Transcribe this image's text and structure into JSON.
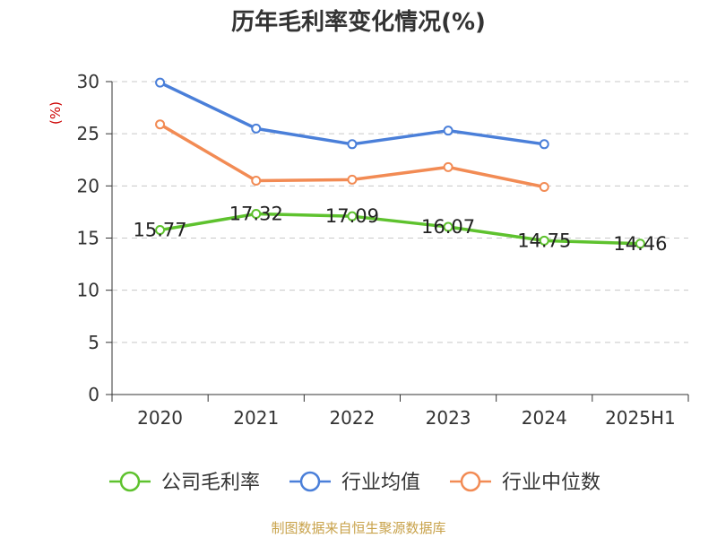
{
  "chart_data": {
    "type": "line",
    "title": "历年毛利率变化情况(%)",
    "ylabel": "(%)",
    "xlabel": "",
    "categories": [
      "2020",
      "2021",
      "2022",
      "2023",
      "2024",
      "2025H1"
    ],
    "ylim": [
      0,
      30
    ],
    "yticks": [
      0,
      5,
      10,
      15,
      20,
      25,
      30
    ],
    "grid": true,
    "legend_position": "bottom",
    "series": [
      {
        "name": "公司毛利率",
        "color": "#5ec22e",
        "values": [
          15.77,
          17.32,
          17.09,
          16.07,
          14.75,
          14.46
        ],
        "data_labels": [
          "15.77",
          "17.32",
          "17.09",
          "16.07",
          "14.75",
          "14.46"
        ]
      },
      {
        "name": "行业均值",
        "color": "#4a7fd9",
        "values": [
          29.9,
          25.5,
          24.0,
          25.3,
          24.0,
          null
        ]
      },
      {
        "name": "行业中位数",
        "color": "#f28b54",
        "values": [
          25.9,
          20.5,
          20.6,
          21.8,
          19.9,
          null
        ]
      }
    ]
  },
  "source": {
    "text": "制图数据来自恒生聚源数据库",
    "color": "#c8a24a"
  },
  "ylabel_color": "#cc0000"
}
